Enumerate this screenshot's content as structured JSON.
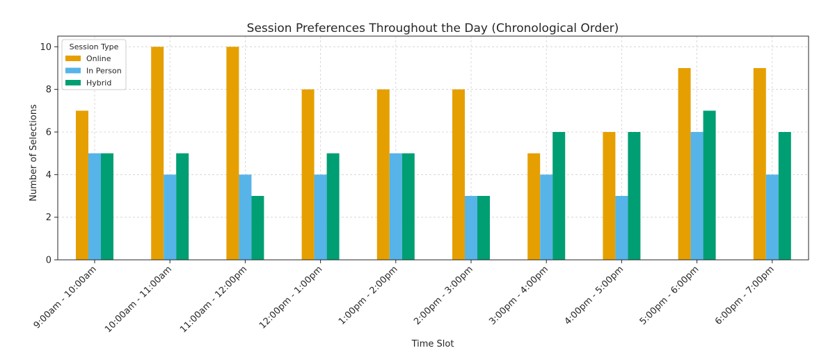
{
  "chart_data": {
    "type": "bar",
    "title": "Session Preferences Throughout the Day (Chronological Order)",
    "xlabel": "Time Slot",
    "ylabel": "Number of Selections",
    "ylim": [
      0,
      10.5
    ],
    "yticks": [
      0,
      2,
      4,
      6,
      8,
      10
    ],
    "grid": true,
    "legend": {
      "title": "Session Type",
      "placement": "top-left"
    },
    "categories": [
      "9:00am - 10:00am",
      "10:00am - 11:00am",
      "11:00am - 12:00pm",
      "12:00pm - 1:00pm",
      "1:00pm - 2:00pm",
      "2:00pm - 3:00pm",
      "3:00pm - 4:00pm",
      "4:00pm - 5:00pm",
      "5:00pm - 6:00pm",
      "6:00pm - 7:00pm"
    ],
    "series": [
      {
        "name": "Online",
        "color": "#E69F00",
        "values": [
          7,
          10,
          10,
          8,
          8,
          8,
          5,
          6,
          9,
          9
        ]
      },
      {
        "name": "In Person",
        "color": "#56B4E9",
        "values": [
          5,
          4,
          4,
          4,
          5,
          3,
          4,
          3,
          6,
          4
        ]
      },
      {
        "name": "Hybrid",
        "color": "#009E73",
        "values": [
          5,
          5,
          3,
          5,
          5,
          3,
          6,
          6,
          7,
          6
        ]
      }
    ]
  }
}
